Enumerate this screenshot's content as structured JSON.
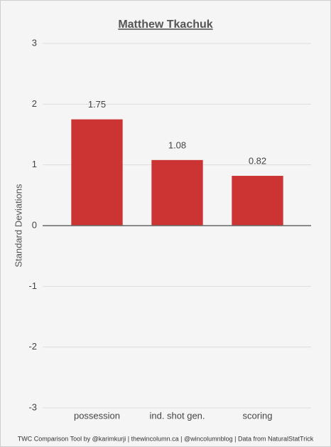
{
  "chart_data": {
    "type": "bar",
    "title": "Matthew Tkachuk",
    "y_label": "Standard Deviations",
    "categories": [
      "possession",
      "ind. shot gen.",
      "scoring"
    ],
    "values": [
      1.75,
      1.08,
      0.82
    ],
    "color": "#cc3333",
    "ylim": [
      -3,
      3
    ],
    "yticks": [
      -3,
      -2,
      -1,
      0,
      1,
      2,
      3
    ],
    "grid": true,
    "footer": "TWC Comparison Tool by @karimkurji | thewincolumn.ca | @wincolumnblog | Data from NaturalStatTrick"
  }
}
